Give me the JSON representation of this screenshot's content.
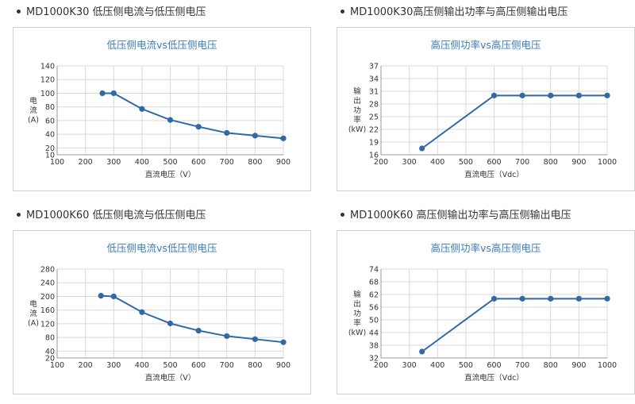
{
  "charts": [
    {
      "heading": "MD1000K30 低压侧电流与低压侧电压",
      "chart_data": {
        "type": "line",
        "title": "低压侧电流vs低压侧电压",
        "xlabel": "直流电压（V）",
        "ylabel_lines": [
          "电",
          "流",
          "(A)"
        ],
        "xlim": [
          100,
          900
        ],
        "xticks": [
          100,
          200,
          300,
          400,
          500,
          600,
          700,
          800,
          900
        ],
        "ylim": [
          10,
          140
        ],
        "yticks": [
          10,
          20,
          40,
          60,
          80,
          100,
          120,
          140
        ],
        "x": [
          260,
          300,
          400,
          500,
          600,
          700,
          800,
          900
        ],
        "y": [
          100,
          100,
          77,
          61,
          51,
          42,
          38,
          34
        ]
      }
    },
    {
      "heading": "MD1000K30高压侧输出功率与高压侧输出电压",
      "chart_data": {
        "type": "line",
        "title": "高压侧功率vs高压侧电压",
        "xlabel": "直流电压（Vdc）",
        "ylabel_lines": [
          "输",
          "出",
          "功",
          "率",
          "(kW)"
        ],
        "xlim": [
          200,
          1000
        ],
        "xticks": [
          200,
          300,
          400,
          500,
          600,
          700,
          800,
          900,
          1000
        ],
        "ylim": [
          16,
          37
        ],
        "yticks": [
          16,
          19,
          22,
          25,
          28,
          31,
          34,
          37
        ],
        "x": [
          345,
          600,
          700,
          800,
          900,
          1000
        ],
        "y": [
          17.5,
          30,
          30,
          30,
          30,
          30
        ]
      }
    },
    {
      "heading": "MD1000K60 低压侧电流与低压侧电压",
      "chart_data": {
        "type": "line",
        "title": "低压侧电流vs低压侧电压",
        "xlabel": "直流电压（V）",
        "ylabel_lines": [
          "电",
          "流",
          "(A)"
        ],
        "xlim": [
          100,
          900
        ],
        "xticks": [
          100,
          200,
          300,
          400,
          500,
          600,
          700,
          800,
          900
        ],
        "ylim": [
          20,
          280
        ],
        "yticks": [
          20,
          40,
          80,
          120,
          160,
          200,
          240,
          280
        ],
        "x": [
          255,
          300,
          400,
          500,
          600,
          700,
          800,
          900
        ],
        "y": [
          202,
          200,
          154,
          121,
          100,
          84,
          75,
          66
        ]
      }
    },
    {
      "heading": "MD1000K60 高压侧输出功率与高压侧输出电压",
      "chart_data": {
        "type": "line",
        "title": "高压侧功率vs高压侧电压",
        "xlabel": "直流电压（Vdc）",
        "ylabel_lines": [
          "输",
          "出",
          "功",
          "率",
          "(kW)"
        ],
        "xlim": [
          200,
          1000
        ],
        "xticks": [
          200,
          300,
          400,
          500,
          600,
          700,
          800,
          900,
          1000
        ],
        "ylim": [
          32,
          74
        ],
        "yticks": [
          32,
          38,
          44,
          50,
          56,
          62,
          68,
          74
        ],
        "x": [
          345,
          600,
          700,
          800,
          900,
          1000
        ],
        "y": [
          35,
          60,
          60,
          60,
          60,
          60
        ]
      }
    }
  ]
}
